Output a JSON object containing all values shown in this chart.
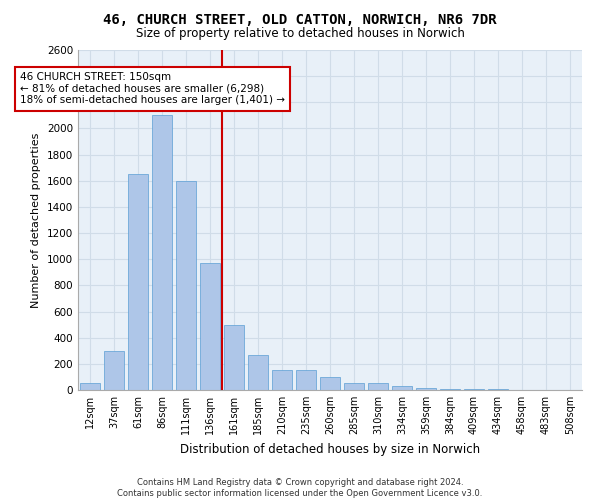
{
  "title_line1": "46, CHURCH STREET, OLD CATTON, NORWICH, NR6 7DR",
  "title_line2": "Size of property relative to detached houses in Norwich",
  "xlabel": "Distribution of detached houses by size in Norwich",
  "ylabel": "Number of detached properties",
  "categories": [
    "12sqm",
    "37sqm",
    "61sqm",
    "86sqm",
    "111sqm",
    "136sqm",
    "161sqm",
    "185sqm",
    "210sqm",
    "235sqm",
    "260sqm",
    "285sqm",
    "310sqm",
    "334sqm",
    "359sqm",
    "384sqm",
    "409sqm",
    "434sqm",
    "458sqm",
    "483sqm",
    "508sqm"
  ],
  "values": [
    50,
    300,
    1650,
    2100,
    1600,
    975,
    500,
    270,
    155,
    150,
    100,
    50,
    50,
    30,
    15,
    10,
    5,
    5,
    3,
    3,
    2
  ],
  "bar_color": "#aec6e8",
  "bar_edge_color": "#5a9fd4",
  "grid_color": "#d0dce8",
  "background_color": "#e8f0f8",
  "red_line_x": 5.5,
  "annotation_text": "46 CHURCH STREET: 150sqm\n← 81% of detached houses are smaller (6,298)\n18% of semi-detached houses are larger (1,401) →",
  "annotation_box_color": "#ffffff",
  "annotation_border_color": "#cc0000",
  "ylim": [
    0,
    2600
  ],
  "yticks": [
    0,
    200,
    400,
    600,
    800,
    1000,
    1200,
    1400,
    1600,
    1800,
    2000,
    2200,
    2400,
    2600
  ],
  "footer_line1": "Contains HM Land Registry data © Crown copyright and database right 2024.",
  "footer_line2": "Contains public sector information licensed under the Open Government Licence v3.0."
}
